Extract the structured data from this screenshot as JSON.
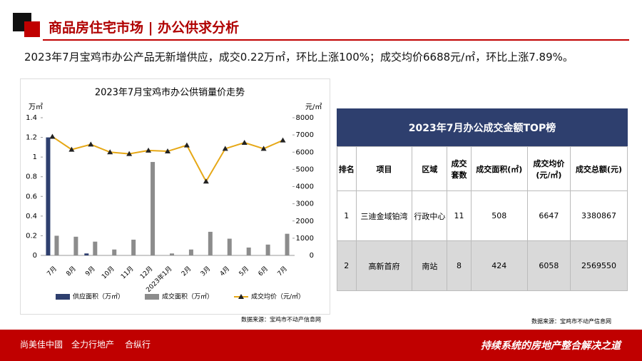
{
  "header": {
    "title": "商品房住宅市场 | 办公供求分析",
    "summary": "2023年7月宝鸡市办公产品无新增供应，成交0.22万㎡，环比上涨100%；成交均价6688元/㎡，环比上涨7.89%。"
  },
  "chart_data": {
    "type": "bar",
    "title": "2023年7月宝鸡市办公供销量价走势",
    "y_label": "万㎡",
    "y2_label": "元/㎡",
    "categories": [
      "7月",
      "8月",
      "9月",
      "10月",
      "11月",
      "12月",
      "2023年1月",
      "2月",
      "3月",
      "4月",
      "5月",
      "6月",
      "7月"
    ],
    "series": [
      {
        "name": "供应面积（万㎡）",
        "color": "#2e3f6e",
        "values": [
          1.2,
          0,
          0.02,
          0,
          0,
          0,
          0,
          0,
          0,
          0,
          0,
          0,
          0
        ]
      },
      {
        "name": "成交面积（万㎡）",
        "color": "#8c8c8c",
        "values": [
          0.2,
          0.19,
          0.14,
          0.06,
          0.16,
          0.95,
          0.02,
          0.06,
          0.24,
          0.17,
          0.08,
          0.11,
          0.22
        ]
      },
      {
        "name": "成交均价（元/㎡）",
        "color": "#e6a817",
        "type": "line",
        "axis": "y2",
        "values": [
          6900,
          6150,
          6450,
          6000,
          5900,
          6100,
          6050,
          6400,
          4300,
          6200,
          6550,
          6200,
          6688
        ]
      }
    ],
    "ylim": [
      0,
      1.4
    ],
    "yticks": [
      0,
      0.2,
      0.4,
      0.6,
      0.8,
      1,
      1.2,
      1.4
    ],
    "y2lim": [
      0,
      8000
    ],
    "y2ticks": [
      0,
      1000,
      2000,
      3000,
      4000,
      5000,
      6000,
      7000,
      8000
    ],
    "legend": "bottom"
  },
  "chart_source": "数据来源：宝鸡市不动产信息网",
  "table": {
    "title": "2023年7月办公成交金额TOP榜",
    "headers": [
      "排名",
      "项目",
      "区域",
      "成交套数",
      "成交面积(㎡)",
      "成交均价(元/㎡)",
      "成交总额(元)"
    ],
    "rows": [
      [
        "1",
        "三迪金域铂湾",
        "行政中心",
        "11",
        "508",
        "6647",
        "3380867"
      ],
      [
        "2",
        "高新首府",
        "南站",
        "8",
        "424",
        "6058",
        "2569550"
      ]
    ]
  },
  "table_source": "数据来源：宝鸡市不动产信息网",
  "footer": {
    "brands": [
      "尚美佳中國",
      "全力行地产",
      "合纵行"
    ],
    "slogan": "持续系统的房地产整合解决之道"
  }
}
